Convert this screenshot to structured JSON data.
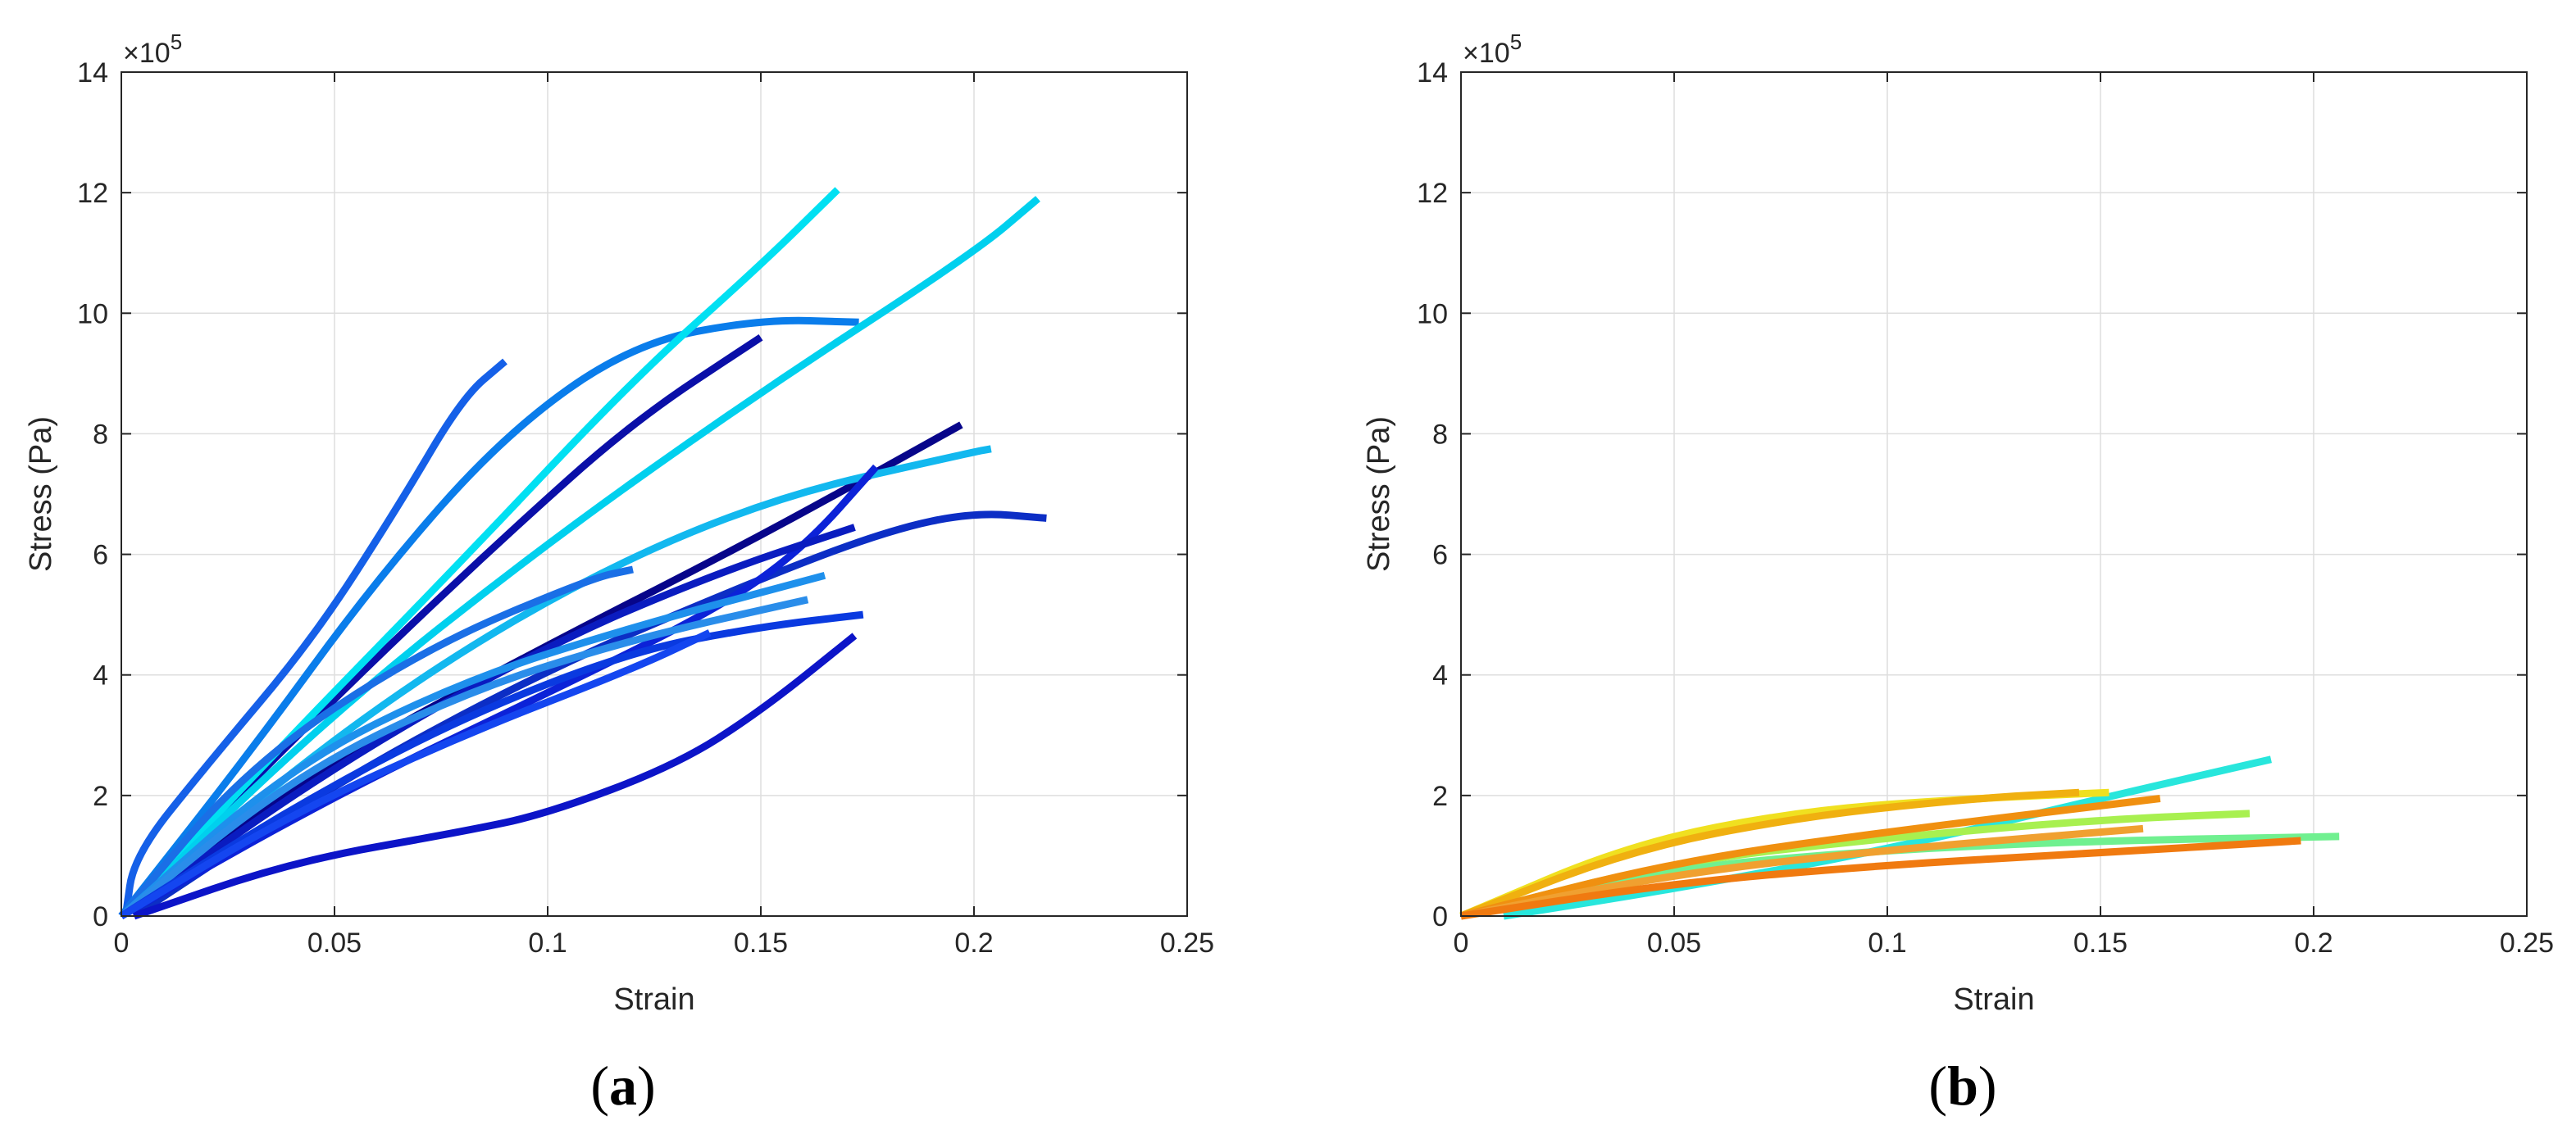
{
  "captions": [
    "(a)",
    "(b)"
  ],
  "chart_data": [
    {
      "type": "line",
      "xlabel": "Strain",
      "ylabel": "Stress (Pa)",
      "xlim": [
        0,
        0.25
      ],
      "ylim": [
        0,
        1400000
      ],
      "xticks": [
        0,
        0.05,
        0.1,
        0.15,
        0.2,
        0.25
      ],
      "xtick_labels": [
        "0",
        "0.05",
        "0.1",
        "0.15",
        "0.2",
        "0.25"
      ],
      "yticks": [
        0,
        200000,
        400000,
        600000,
        800000,
        1000000,
        1200000,
        1400000
      ],
      "ytick_labels": [
        "0",
        "2",
        "4",
        "6",
        "8",
        "10",
        "12",
        "14"
      ],
      "y_multiplier": "×10",
      "y_multiplier_exponent": "5",
      "grid": true,
      "series": [
        {
          "color": "#1560E8",
          "points": [
            [
              0.001,
              0
            ],
            [
              0.003,
              100000
            ],
            [
              0.02,
              250000
            ],
            [
              0.045,
              460000
            ],
            [
              0.065,
              680000
            ],
            [
              0.08,
              860000
            ],
            [
              0.09,
              920000
            ]
          ]
        },
        {
          "color": "#0A7DEB",
          "points": [
            [
              0.0,
              0
            ],
            [
              0.03,
              270000
            ],
            [
              0.06,
              560000
            ],
            [
              0.09,
              800000
            ],
            [
              0.12,
              950000
            ],
            [
              0.15,
              990000
            ],
            [
              0.173,
              985000
            ]
          ]
        },
        {
          "color": "#0A0FA8",
          "points": [
            [
              0.0,
              0
            ],
            [
              0.03,
              220000
            ],
            [
              0.06,
              430000
            ],
            [
              0.09,
              630000
            ],
            [
              0.12,
              820000
            ],
            [
              0.15,
              960000
            ]
          ]
        },
        {
          "color": "#00E0F2",
          "points": [
            [
              0.0,
              0
            ],
            [
              0.04,
              300000
            ],
            [
              0.08,
              590000
            ],
            [
              0.12,
              890000
            ],
            [
              0.15,
              1080000
            ],
            [
              0.168,
              1205000
            ]
          ]
        },
        {
          "color": "#00D0EE",
          "points": [
            [
              0.0,
              0
            ],
            [
              0.05,
              340000
            ],
            [
              0.1,
              620000
            ],
            [
              0.15,
              870000
            ],
            [
              0.2,
              1100000
            ],
            [
              0.215,
              1190000
            ]
          ]
        },
        {
          "color": "#07058A",
          "points": [
            [
              0.0,
              0
            ],
            [
              0.05,
              260000
            ],
            [
              0.1,
              450000
            ],
            [
              0.15,
              630000
            ],
            [
              0.197,
              815000
            ]
          ]
        },
        {
          "color": "#12B8EF",
          "points": [
            [
              0.0,
              0
            ],
            [
              0.05,
              300000
            ],
            [
              0.1,
              530000
            ],
            [
              0.15,
              690000
            ],
            [
              0.2,
              770000
            ],
            [
              0.204,
              775000
            ]
          ]
        },
        {
          "color": "#0C2EC5",
          "points": [
            [
              0.003,
              0
            ],
            [
              0.05,
              220000
            ],
            [
              0.1,
              410000
            ],
            [
              0.15,
              560000
            ],
            [
              0.18,
              640000
            ],
            [
              0.2,
              670000
            ],
            [
              0.217,
              660000
            ]
          ]
        },
        {
          "color": "#0C22D8",
          "points": [
            [
              0.0,
              0
            ],
            [
              0.05,
              200000
            ],
            [
              0.1,
              370000
            ],
            [
              0.14,
              510000
            ],
            [
              0.16,
              610000
            ],
            [
              0.177,
              745000
            ]
          ]
        },
        {
          "color": "#0A1CC0",
          "points": [
            [
              0.0,
              0
            ],
            [
              0.05,
              250000
            ],
            [
              0.1,
              450000
            ],
            [
              0.14,
              570000
            ],
            [
              0.172,
              645000
            ]
          ]
        },
        {
          "color": "#1A6FE6",
          "points": [
            [
              0.0,
              0
            ],
            [
              0.03,
              250000
            ],
            [
              0.07,
              440000
            ],
            [
              0.11,
              560000
            ],
            [
              0.12,
              575000
            ]
          ]
        },
        {
          "color": "#1E90EC",
          "points": [
            [
              0.0,
              0
            ],
            [
              0.04,
              250000
            ],
            [
              0.08,
              390000
            ],
            [
              0.12,
              480000
            ],
            [
              0.165,
              565000
            ]
          ]
        },
        {
          "color": "#2A8DEA",
          "points": [
            [
              0.0,
              0
            ],
            [
              0.04,
              230000
            ],
            [
              0.08,
              370000
            ],
            [
              0.12,
              460000
            ],
            [
              0.161,
              525000
            ]
          ]
        },
        {
          "color": "#0A3AE0",
          "points": [
            [
              0.0,
              0
            ],
            [
              0.04,
              180000
            ],
            [
              0.08,
              330000
            ],
            [
              0.12,
              440000
            ],
            [
              0.15,
              480000
            ],
            [
              0.174,
              500000
            ]
          ]
        },
        {
          "color": "#0C14C8",
          "points": [
            [
              0.003,
              0
            ],
            [
              0.04,
              90000
            ],
            [
              0.08,
              140000
            ],
            [
              0.1,
              170000
            ],
            [
              0.13,
              250000
            ],
            [
              0.15,
              340000
            ],
            [
              0.172,
              465000
            ]
          ]
        },
        {
          "color": "#1446F0",
          "points": [
            [
              0.0,
              0
            ],
            [
              0.04,
              170000
            ],
            [
              0.08,
              300000
            ],
            [
              0.12,
              410000
            ],
            [
              0.138,
              470000
            ]
          ]
        }
      ]
    },
    {
      "type": "line",
      "xlabel": "Strain",
      "ylabel": "Stress (Pa)",
      "xlim": [
        0,
        0.25
      ],
      "ylim": [
        0,
        1400000
      ],
      "xticks": [
        0,
        0.05,
        0.1,
        0.15,
        0.2,
        0.25
      ],
      "xtick_labels": [
        "0",
        "0.05",
        "0.1",
        "0.15",
        "0.2",
        "0.25"
      ],
      "yticks": [
        0,
        200000,
        400000,
        600000,
        800000,
        1000000,
        1200000,
        1400000
      ],
      "ytick_labels": [
        "0",
        "2",
        "4",
        "6",
        "8",
        "10",
        "12",
        "14"
      ],
      "y_multiplier": "×10",
      "y_multiplier_exponent": "5",
      "grid": true,
      "series": [
        {
          "color": "#28E6DC",
          "points": [
            [
              0.01,
              0
            ],
            [
              0.05,
              45000
            ],
            [
              0.1,
              110000
            ],
            [
              0.15,
              195000
            ],
            [
              0.19,
              260000
            ]
          ]
        },
        {
          "color": "#A8F050",
          "points": [
            [
              0.0,
              0
            ],
            [
              0.05,
              90000
            ],
            [
              0.1,
              130000
            ],
            [
              0.15,
              160000
            ],
            [
              0.185,
              170000
            ]
          ]
        },
        {
          "color": "#70F090",
          "points": [
            [
              0.0,
              0
            ],
            [
              0.05,
              80000
            ],
            [
              0.1,
              110000
            ],
            [
              0.15,
              125000
            ],
            [
              0.206,
              132000
            ]
          ]
        },
        {
          "color": "#F0E020",
          "points": [
            [
              0.0,
              0
            ],
            [
              0.04,
              120000
            ],
            [
              0.08,
              175000
            ],
            [
              0.12,
              195000
            ],
            [
              0.152,
              205000
            ]
          ]
        },
        {
          "color": "#F0B010",
          "points": [
            [
              0.0,
              0
            ],
            [
              0.04,
              110000
            ],
            [
              0.08,
              165000
            ],
            [
              0.12,
              195000
            ],
            [
              0.145,
              205000
            ]
          ]
        },
        {
          "color": "#F09010",
          "points": [
            [
              0.0,
              0
            ],
            [
              0.05,
              90000
            ],
            [
              0.1,
              140000
            ],
            [
              0.164,
              195000
            ]
          ]
        },
        {
          "color": "#F0A030",
          "points": [
            [
              0.0,
              0
            ],
            [
              0.05,
              70000
            ],
            [
              0.1,
              110000
            ],
            [
              0.16,
              145000
            ]
          ]
        },
        {
          "color": "#F07A10",
          "points": [
            [
              0.0,
              0
            ],
            [
              0.05,
              55000
            ],
            [
              0.1,
              85000
            ],
            [
              0.15,
              105000
            ],
            [
              0.197,
              125000
            ]
          ]
        }
      ]
    }
  ]
}
